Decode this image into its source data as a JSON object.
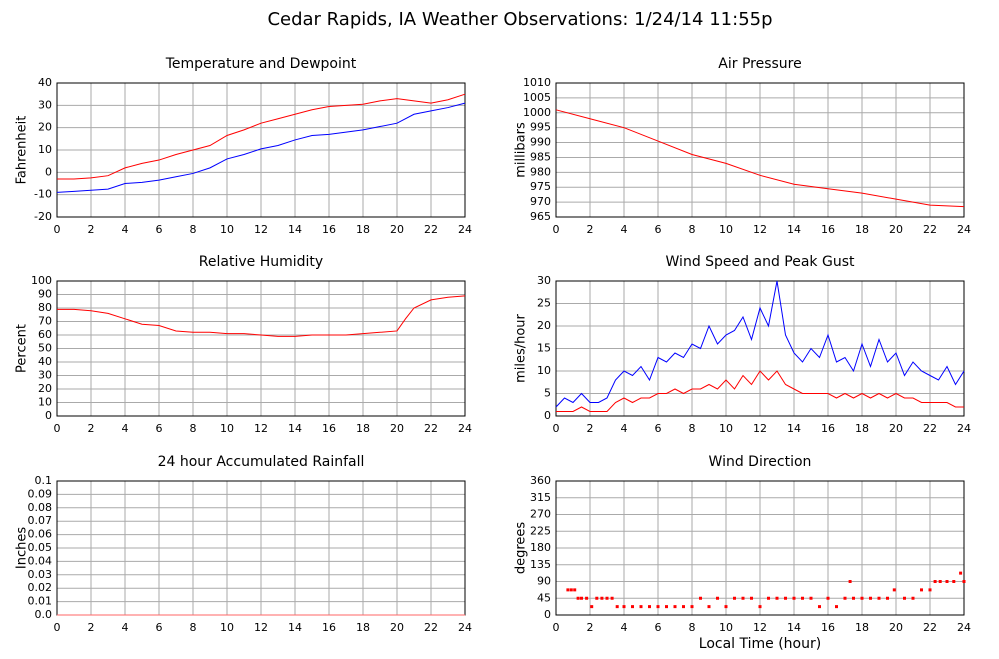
{
  "title": "Cedar Rapids, IA Weather Observations: 1/24/14 11:55p",
  "chart_data": [
    {
      "type": "line",
      "title": "Temperature and Dewpoint",
      "ylabel": "Fahrenheit",
      "x": [
        0,
        1,
        2,
        3,
        4,
        5,
        6,
        7,
        8,
        9,
        10,
        11,
        12,
        13,
        14,
        15,
        16,
        17,
        18,
        19,
        20,
        21,
        22,
        23,
        24
      ],
      "series": [
        {
          "color": "#ff0000",
          "values": [
            -3,
            -3,
            -2.5,
            -1.5,
            2,
            4,
            5.5,
            8,
            10,
            12,
            16.5,
            19,
            22,
            24,
            26,
            28,
            29.5,
            30,
            30.5,
            32,
            33,
            32,
            31,
            32.5,
            35
          ]
        },
        {
          "color": "#0000ff",
          "values": [
            -9,
            -8.5,
            -8,
            -7.5,
            -5,
            -4.5,
            -3.5,
            -2,
            -0.5,
            2,
            6,
            8,
            10.5,
            12,
            14.5,
            16.5,
            17,
            18,
            19,
            20.5,
            22,
            26,
            27.5,
            29,
            31
          ]
        }
      ],
      "xlim": [
        0,
        24
      ],
      "xticks": [
        0,
        2,
        4,
        6,
        8,
        10,
        12,
        14,
        16,
        18,
        20,
        22,
        24
      ],
      "ylim": [
        -20,
        40
      ],
      "yticks": [
        -20,
        -10,
        0,
        10,
        20,
        30,
        40
      ],
      "grid": true
    },
    {
      "type": "line",
      "title": "Air Pressure",
      "ylabel": "millibars",
      "x": [
        0,
        2,
        4,
        6,
        8,
        10,
        12,
        14,
        16,
        18,
        20,
        22,
        24
      ],
      "series": [
        {
          "color": "#ff0000",
          "values": [
            1001,
            998,
            995,
            990.5,
            986,
            983,
            979,
            976,
            974.5,
            973,
            971,
            969,
            968.5
          ]
        }
      ],
      "xlim": [
        0,
        24
      ],
      "xticks": [
        0,
        2,
        4,
        6,
        8,
        10,
        12,
        14,
        16,
        18,
        20,
        22,
        24
      ],
      "ylim": [
        965,
        1010
      ],
      "yticks": [
        965,
        970,
        975,
        980,
        985,
        990,
        995,
        1000,
        1005,
        1010
      ],
      "grid": true
    },
    {
      "type": "line",
      "title": "Relative Humidity",
      "ylabel": "Percent",
      "x": [
        0,
        1,
        2,
        3,
        4,
        5,
        6,
        7,
        8,
        9,
        10,
        11,
        12,
        13,
        14,
        15,
        16,
        17,
        18,
        19,
        20,
        20.5,
        21,
        22,
        23,
        24
      ],
      "series": [
        {
          "color": "#ff0000",
          "values": [
            79,
            79,
            78,
            76,
            72,
            68,
            67,
            63,
            62,
            62,
            61,
            61,
            60,
            59,
            59,
            60,
            60,
            60,
            61,
            62,
            63,
            72,
            80,
            86,
            88,
            89
          ]
        }
      ],
      "xlim": [
        0,
        24
      ],
      "xticks": [
        0,
        2,
        4,
        6,
        8,
        10,
        12,
        14,
        16,
        18,
        20,
        22,
        24
      ],
      "ylim": [
        0,
        100
      ],
      "yticks": [
        0,
        10,
        20,
        30,
        40,
        50,
        60,
        70,
        80,
        90,
        100
      ],
      "grid": true
    },
    {
      "type": "line",
      "title": "Wind Speed and Peak Gust",
      "ylabel": "miles/hour",
      "x": [
        0,
        0.5,
        1,
        1.5,
        2,
        2.5,
        3,
        3.5,
        4,
        4.5,
        5,
        5.5,
        6,
        6.5,
        7,
        7.5,
        8,
        8.5,
        9,
        9.5,
        10,
        10.5,
        11,
        11.5,
        12,
        12.5,
        13,
        13.5,
        14,
        14.5,
        15,
        15.5,
        16,
        16.5,
        17,
        17.5,
        18,
        18.5,
        19,
        19.5,
        20,
        20.5,
        21,
        21.5,
        22,
        22.5,
        23,
        23.5,
        24
      ],
      "series": [
        {
          "color": "#0000ff",
          "values": [
            2,
            4,
            3,
            5,
            3,
            3,
            4,
            8,
            10,
            9,
            11,
            8,
            13,
            12,
            14,
            13,
            16,
            15,
            20,
            16,
            18,
            19,
            22,
            17,
            24,
            20,
            30,
            18,
            14,
            12,
            15,
            13,
            18,
            12,
            13,
            10,
            16,
            11,
            17,
            12,
            14,
            9,
            12,
            10,
            9,
            8,
            11,
            7,
            10
          ]
        },
        {
          "color": "#ff0000",
          "values": [
            1,
            1,
            1,
            2,
            1,
            1,
            1,
            3,
            4,
            3,
            4,
            4,
            5,
            5,
            6,
            5,
            6,
            6,
            7,
            6,
            8,
            6,
            9,
            7,
            10,
            8,
            10,
            7,
            6,
            5,
            5,
            5,
            5,
            4,
            5,
            4,
            5,
            4,
            5,
            4,
            5,
            4,
            4,
            3,
            3,
            3,
            3,
            2,
            2
          ]
        }
      ],
      "xlim": [
        0,
        24
      ],
      "xticks": [
        0,
        2,
        4,
        6,
        8,
        10,
        12,
        14,
        16,
        18,
        20,
        22,
        24
      ],
      "ylim": [
        0,
        30
      ],
      "yticks": [
        0,
        5,
        10,
        15,
        20,
        25,
        30
      ],
      "grid": true
    },
    {
      "type": "line",
      "title": "24 hour Accumulated Rainfall",
      "ylabel": "Inches",
      "x": [
        0,
        24
      ],
      "series": [
        {
          "color": "#ff6666",
          "values": [
            0,
            0
          ]
        }
      ],
      "xlim": [
        0,
        24
      ],
      "xticks": [
        0,
        2,
        4,
        6,
        8,
        10,
        12,
        14,
        16,
        18,
        20,
        22,
        24
      ],
      "ylim": [
        0,
        0.1
      ],
      "yticks": [
        {
          "value": 0,
          "label": "0.0"
        },
        0.01,
        0.02,
        0.03,
        0.04,
        0.05,
        0.06,
        0.07,
        0.08,
        0.09,
        0.1
      ],
      "grid": true
    },
    {
      "type": "scatter",
      "title": "Wind Direction",
      "ylabel": "degrees",
      "xlabel": "Local Time (hour)",
      "x": [
        0.7,
        0.9,
        1.1,
        1.3,
        1.5,
        1.8,
        2.1,
        2.4,
        2.7,
        3.0,
        3.3,
        3.6,
        4.0,
        4.5,
        5.0,
        5.5,
        6.0,
        6.5,
        7.0,
        7.5,
        8.0,
        8.5,
        9.0,
        9.5,
        10.0,
        10.5,
        11.0,
        11.5,
        12.0,
        12.5,
        13.0,
        13.5,
        14.0,
        14.5,
        15.0,
        15.5,
        16.0,
        16.5,
        17.0,
        17.3,
        17.5,
        18.0,
        18.5,
        19.0,
        19.5,
        19.9,
        20.5,
        21.0,
        21.5,
        22.0,
        22.3,
        22.6,
        23.0,
        23.4,
        23.8,
        24.0
      ],
      "values": [
        67.5,
        67.5,
        67.5,
        45,
        45,
        45,
        22.5,
        45,
        45,
        45,
        45,
        22.5,
        22.5,
        22.5,
        22.5,
        22.5,
        22.5,
        22.5,
        22.5,
        22.5,
        22.5,
        45,
        22.5,
        45,
        22.5,
        45,
        45,
        45,
        22.5,
        45,
        45,
        45,
        45,
        45,
        45,
        22.5,
        45,
        22.5,
        45,
        90,
        45,
        45,
        45,
        45,
        45,
        67.5,
        45,
        45,
        67.5,
        67.5,
        90,
        90,
        90,
        90,
        112.5,
        90
      ],
      "color": "#ff0000",
      "xlim": [
        0,
        24
      ],
      "xticks": [
        0,
        2,
        4,
        6,
        8,
        10,
        12,
        14,
        16,
        18,
        20,
        22,
        24
      ],
      "ylim": [
        0,
        360
      ],
      "yticks": [
        0,
        45,
        90,
        135,
        180,
        225,
        270,
        315,
        360
      ],
      "grid": true
    }
  ]
}
